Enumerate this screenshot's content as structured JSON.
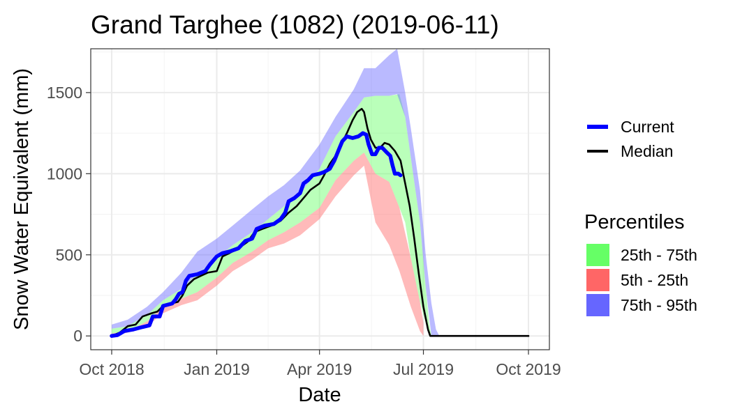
{
  "chart_data": {
    "type": "area",
    "title": "Grand Targhee (1082) (2019-06-11)",
    "xlabel": "Date",
    "ylabel": "Snow Water Equivalent (mm)",
    "x_range": [
      "2018-10-01",
      "2019-10-01"
    ],
    "ylim": [
      -85,
      1770
    ],
    "x_ticks": [
      {
        "date": "2018-10-01",
        "label": "Oct 2018"
      },
      {
        "date": "2019-01-01",
        "label": "Jan 2019"
      },
      {
        "date": "2019-04-01",
        "label": "Apr 2019"
      },
      {
        "date": "2019-07-01",
        "label": "Jul 2019"
      },
      {
        "date": "2019-10-01",
        "label": "Oct 2019"
      }
    ],
    "y_ticks": [
      0,
      500,
      1000,
      1500
    ],
    "grid": true,
    "legend_placement": "right",
    "line_legend": [
      {
        "label": "Current",
        "color": "#0000ff"
      },
      {
        "label": "Median",
        "color": "#000000"
      }
    ],
    "band_legend": {
      "title": "Percentiles",
      "items": [
        {
          "label": "25th - 75th",
          "color": "#66ff66"
        },
        {
          "label": "5th - 25th",
          "color": "#ff6666"
        },
        {
          "label": "75th - 95th",
          "color": "#6666ff"
        }
      ]
    },
    "series": [
      {
        "name": "Current",
        "color": "#0000ff",
        "points": [
          [
            "2018-10-01",
            0
          ],
          [
            "2018-10-06",
            5
          ],
          [
            "2018-10-12",
            30
          ],
          [
            "2018-10-20",
            40
          ],
          [
            "2018-10-28",
            55
          ],
          [
            "2018-11-03",
            65
          ],
          [
            "2018-11-06",
            120
          ],
          [
            "2018-11-12",
            120
          ],
          [
            "2018-11-15",
            185
          ],
          [
            "2018-11-23",
            200
          ],
          [
            "2018-11-26",
            225
          ],
          [
            "2018-11-29",
            260
          ],
          [
            "2018-12-02",
            270
          ],
          [
            "2018-12-05",
            340
          ],
          [
            "2018-12-08",
            370
          ],
          [
            "2018-12-15",
            380
          ],
          [
            "2018-12-22",
            400
          ],
          [
            "2018-12-26",
            440
          ],
          [
            "2019-01-01",
            490
          ],
          [
            "2019-01-06",
            510
          ],
          [
            "2019-01-12",
            520
          ],
          [
            "2019-01-20",
            540
          ],
          [
            "2019-01-26",
            585
          ],
          [
            "2019-02-01",
            600
          ],
          [
            "2019-02-05",
            660
          ],
          [
            "2019-02-12",
            680
          ],
          [
            "2019-02-20",
            690
          ],
          [
            "2019-02-26",
            720
          ],
          [
            "2019-03-02",
            760
          ],
          [
            "2019-03-05",
            830
          ],
          [
            "2019-03-10",
            850
          ],
          [
            "2019-03-15",
            880
          ],
          [
            "2019-03-18",
            940
          ],
          [
            "2019-03-22",
            960
          ],
          [
            "2019-03-26",
            990
          ],
          [
            "2019-04-01",
            1000
          ],
          [
            "2019-04-05",
            1010
          ],
          [
            "2019-04-10",
            1030
          ],
          [
            "2019-04-14",
            1080
          ],
          [
            "2019-04-18",
            1150
          ],
          [
            "2019-04-21",
            1200
          ],
          [
            "2019-04-25",
            1230
          ],
          [
            "2019-04-30",
            1220
          ],
          [
            "2019-05-05",
            1230
          ],
          [
            "2019-05-09",
            1250
          ],
          [
            "2019-05-12",
            1240
          ],
          [
            "2019-05-14",
            1180
          ],
          [
            "2019-05-17",
            1120
          ],
          [
            "2019-05-20",
            1120
          ],
          [
            "2019-05-23",
            1160
          ],
          [
            "2019-05-26",
            1160
          ],
          [
            "2019-05-30",
            1130
          ],
          [
            "2019-06-02",
            1110
          ],
          [
            "2019-06-04",
            1050
          ],
          [
            "2019-06-06",
            1000
          ],
          [
            "2019-06-09",
            1000
          ],
          [
            "2019-06-11",
            990
          ]
        ]
      },
      {
        "name": "Median",
        "color": "#000000",
        "points": [
          [
            "2018-10-01",
            0
          ],
          [
            "2018-10-08",
            20
          ],
          [
            "2018-10-15",
            60
          ],
          [
            "2018-10-22",
            70
          ],
          [
            "2018-10-28",
            120
          ],
          [
            "2018-11-05",
            140
          ],
          [
            "2018-11-10",
            150
          ],
          [
            "2018-11-15",
            185
          ],
          [
            "2018-11-22",
            200
          ],
          [
            "2018-11-28",
            210
          ],
          [
            "2018-12-02",
            250
          ],
          [
            "2018-12-06",
            310
          ],
          [
            "2018-12-12",
            350
          ],
          [
            "2018-12-18",
            370
          ],
          [
            "2018-12-24",
            390
          ],
          [
            "2019-01-01",
            400
          ],
          [
            "2019-01-06",
            490
          ],
          [
            "2019-01-12",
            510
          ],
          [
            "2019-01-20",
            540
          ],
          [
            "2019-01-28",
            580
          ],
          [
            "2019-02-03",
            640
          ],
          [
            "2019-02-10",
            660
          ],
          [
            "2019-02-18",
            680
          ],
          [
            "2019-02-26",
            710
          ],
          [
            "2019-03-05",
            760
          ],
          [
            "2019-03-12",
            800
          ],
          [
            "2019-03-18",
            850
          ],
          [
            "2019-03-24",
            900
          ],
          [
            "2019-04-01",
            940
          ],
          [
            "2019-04-05",
            990
          ],
          [
            "2019-04-10",
            1060
          ],
          [
            "2019-04-15",
            1110
          ],
          [
            "2019-04-20",
            1180
          ],
          [
            "2019-04-25",
            1250
          ],
          [
            "2019-04-30",
            1330
          ],
          [
            "2019-05-04",
            1380
          ],
          [
            "2019-05-08",
            1400
          ],
          [
            "2019-05-10",
            1380
          ],
          [
            "2019-05-13",
            1280
          ],
          [
            "2019-05-16",
            1210
          ],
          [
            "2019-05-20",
            1160
          ],
          [
            "2019-05-24",
            1160
          ],
          [
            "2019-05-28",
            1190
          ],
          [
            "2019-06-01",
            1180
          ],
          [
            "2019-06-06",
            1140
          ],
          [
            "2019-06-11",
            1080
          ],
          [
            "2019-06-15",
            940
          ],
          [
            "2019-06-19",
            800
          ],
          [
            "2019-06-23",
            600
          ],
          [
            "2019-06-27",
            380
          ],
          [
            "2019-07-01",
            180
          ],
          [
            "2019-07-05",
            40
          ],
          [
            "2019-07-07",
            0
          ],
          [
            "2019-10-01",
            0
          ]
        ]
      }
    ],
    "bands": [
      {
        "name": "5th - 25th",
        "color": "#ff6666",
        "points": [
          [
            "2018-10-01",
            0,
            15
          ],
          [
            "2018-10-15",
            20,
            30
          ],
          [
            "2018-11-01",
            60,
            90
          ],
          [
            "2018-11-15",
            140,
            180
          ],
          [
            "2018-12-01",
            190,
            230
          ],
          [
            "2018-12-15",
            220,
            270
          ],
          [
            "2019-01-01",
            310,
            360
          ],
          [
            "2019-01-15",
            400,
            450
          ],
          [
            "2019-02-01",
            470,
            520
          ],
          [
            "2019-02-15",
            540,
            590
          ],
          [
            "2019-03-01",
            570,
            640
          ],
          [
            "2019-03-15",
            620,
            700
          ],
          [
            "2019-04-01",
            720,
            790
          ],
          [
            "2019-04-15",
            860,
            960
          ],
          [
            "2019-05-01",
            990,
            1080
          ],
          [
            "2019-05-10",
            1050,
            1130
          ],
          [
            "2019-05-20",
            700,
            1000
          ],
          [
            "2019-06-01",
            560,
            950
          ],
          [
            "2019-06-10",
            400,
            790
          ],
          [
            "2019-06-20",
            180,
            480
          ],
          [
            "2019-06-28",
            30,
            210
          ],
          [
            "2019-07-01",
            0,
            80
          ]
        ]
      },
      {
        "name": "25th - 75th",
        "color": "#66ff66",
        "points": [
          [
            "2018-10-01",
            15,
            45
          ],
          [
            "2018-10-15",
            30,
            60
          ],
          [
            "2018-11-01",
            90,
            130
          ],
          [
            "2018-11-15",
            180,
            220
          ],
          [
            "2018-12-01",
            230,
            290
          ],
          [
            "2018-12-15",
            270,
            380
          ],
          [
            "2019-01-01",
            360,
            480
          ],
          [
            "2019-01-15",
            450,
            560
          ],
          [
            "2019-02-01",
            520,
            640
          ],
          [
            "2019-02-15",
            590,
            720
          ],
          [
            "2019-03-01",
            640,
            800
          ],
          [
            "2019-03-15",
            700,
            880
          ],
          [
            "2019-04-01",
            790,
            1030
          ],
          [
            "2019-04-15",
            960,
            1230
          ],
          [
            "2019-05-01",
            1080,
            1380
          ],
          [
            "2019-05-10",
            1130,
            1470
          ],
          [
            "2019-05-20",
            1000,
            1480
          ],
          [
            "2019-06-01",
            950,
            1480
          ],
          [
            "2019-06-10",
            790,
            1490
          ],
          [
            "2019-06-15",
            700,
            1350
          ],
          [
            "2019-06-20",
            480,
            1100
          ],
          [
            "2019-06-28",
            210,
            700
          ],
          [
            "2019-07-03",
            80,
            300
          ],
          [
            "2019-07-06",
            0,
            80
          ],
          [
            "2019-07-08",
            0,
            0
          ]
        ]
      },
      {
        "name": "75th - 95th",
        "color": "#6666ff",
        "points": [
          [
            "2018-10-01",
            45,
            70
          ],
          [
            "2018-10-15",
            60,
            100
          ],
          [
            "2018-11-01",
            130,
            180
          ],
          [
            "2018-11-15",
            220,
            270
          ],
          [
            "2018-12-01",
            290,
            390
          ],
          [
            "2018-12-15",
            380,
            520
          ],
          [
            "2019-01-01",
            480,
            600
          ],
          [
            "2019-01-15",
            560,
            680
          ],
          [
            "2019-02-01",
            640,
            780
          ],
          [
            "2019-02-15",
            720,
            860
          ],
          [
            "2019-03-01",
            800,
            930
          ],
          [
            "2019-03-15",
            880,
            1020
          ],
          [
            "2019-04-01",
            1030,
            1180
          ],
          [
            "2019-04-15",
            1230,
            1350
          ],
          [
            "2019-05-01",
            1380,
            1520
          ],
          [
            "2019-05-10",
            1470,
            1650
          ],
          [
            "2019-05-20",
            1480,
            1650
          ],
          [
            "2019-06-01",
            1480,
            1730
          ],
          [
            "2019-06-08",
            1490,
            1770
          ],
          [
            "2019-06-15",
            1350,
            1500
          ],
          [
            "2019-06-20",
            1100,
            1280
          ],
          [
            "2019-06-28",
            700,
            900
          ],
          [
            "2019-07-03",
            300,
            500
          ],
          [
            "2019-07-08",
            0,
            200
          ],
          [
            "2019-07-12",
            0,
            40
          ],
          [
            "2019-07-15",
            0,
            0
          ]
        ]
      }
    ]
  }
}
